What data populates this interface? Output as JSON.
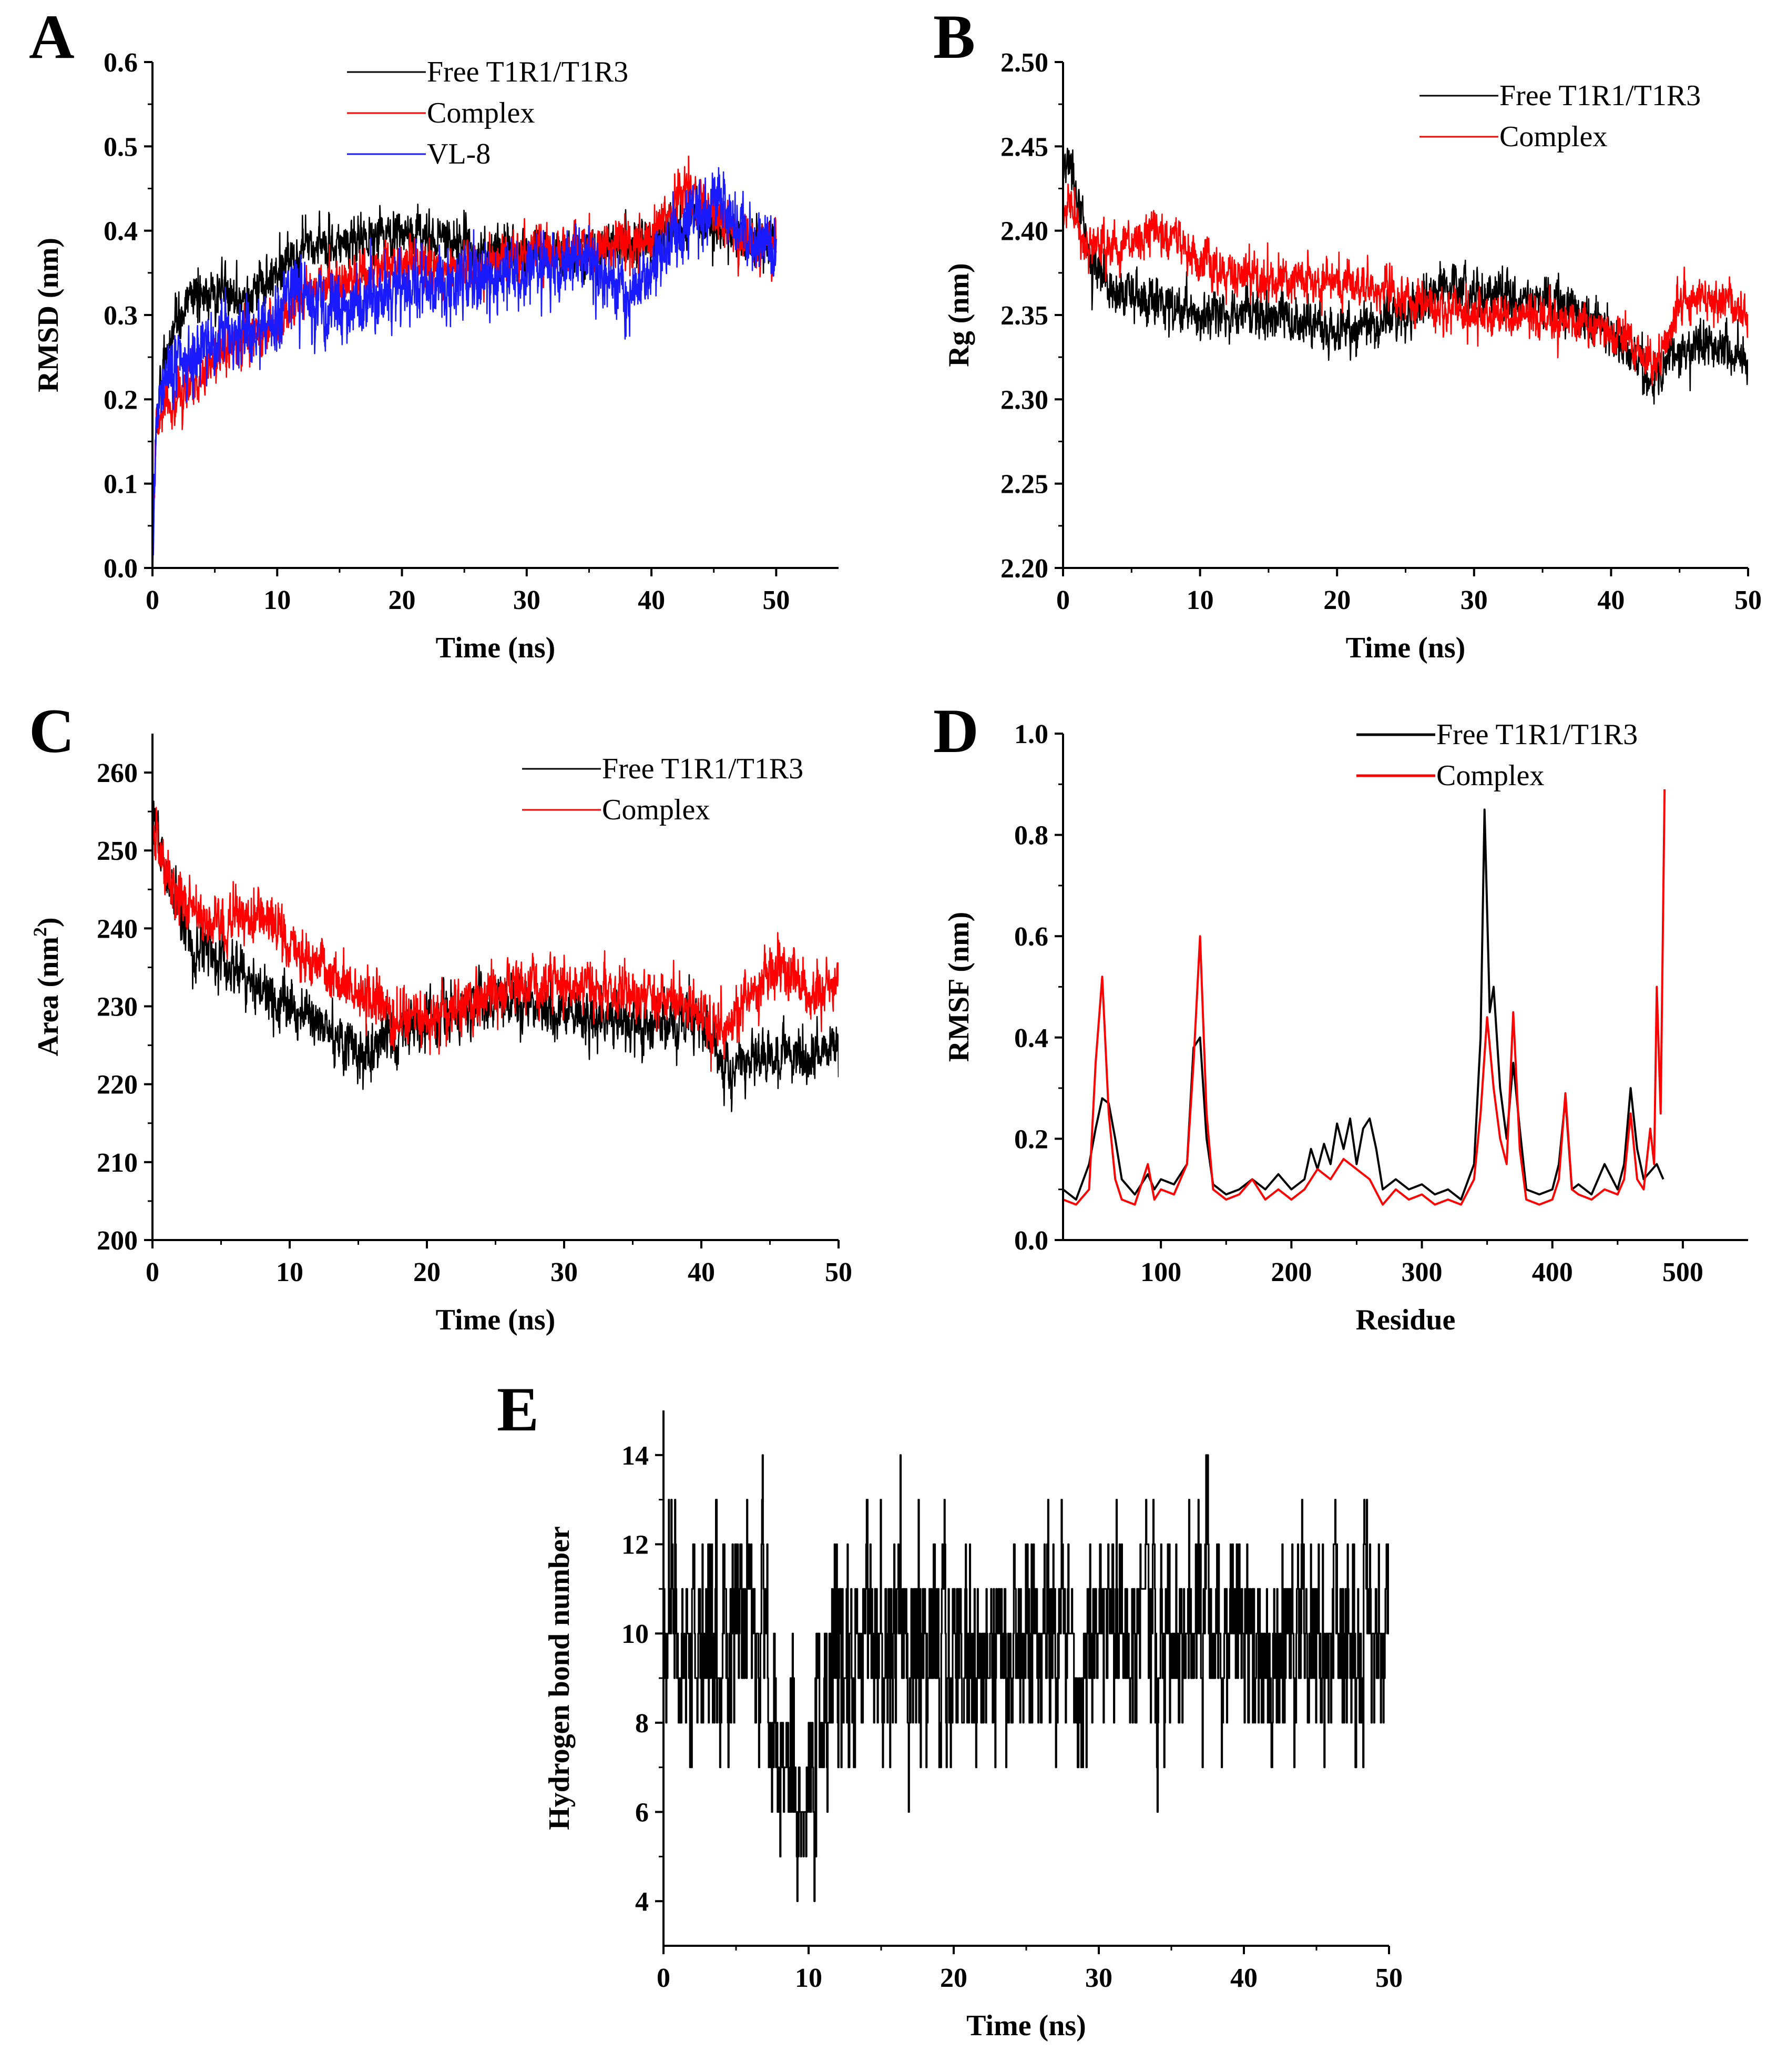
{
  "colors": {
    "black": "#000000",
    "red": "#ff0000",
    "blue": "#1a1aff"
  },
  "chart_data": [
    {
      "id": "A",
      "type": "line",
      "panel_label": "A",
      "xlabel": "Time (ns)",
      "ylabel": "RMSD (nm)",
      "xlim": [
        0,
        55
      ],
      "ylim": [
        0,
        0.6
      ],
      "xticks": [
        0,
        10,
        20,
        30,
        40,
        50
      ],
      "xtick_labels": [
        "0",
        "10",
        "20",
        "30",
        "40",
        "50"
      ],
      "yticks": [
        0,
        0.1,
        0.2,
        0.3,
        0.4,
        0.5,
        0.6
      ],
      "ytick_labels": [
        "0.0",
        "0.1",
        "0.2",
        "0.3",
        "0.4",
        "0.5",
        "0.6"
      ],
      "legend": "top-center",
      "series": [
        {
          "name": "Free T1R1/T1R3",
          "color": "#000000",
          "noise": 0.018,
          "x": [
            0,
            0.3,
            1,
            2,
            3,
            5,
            8,
            10,
            12,
            15,
            20,
            25,
            30,
            35,
            40,
            43,
            45,
            48,
            50
          ],
          "y": [
            0,
            0.18,
            0.25,
            0.28,
            0.32,
            0.33,
            0.32,
            0.35,
            0.38,
            0.38,
            0.4,
            0.38,
            0.37,
            0.37,
            0.39,
            0.41,
            0.4,
            0.39,
            0.38
          ]
        },
        {
          "name": "Complex",
          "color": "#ff0000",
          "noise": 0.018,
          "x": [
            0,
            0.3,
            1,
            3,
            5,
            8,
            10,
            12,
            15,
            20,
            25,
            30,
            33,
            36,
            40,
            42,
            43,
            45,
            48,
            50
          ],
          "y": [
            0,
            0.17,
            0.19,
            0.21,
            0.25,
            0.28,
            0.29,
            0.32,
            0.34,
            0.36,
            0.35,
            0.37,
            0.38,
            0.38,
            0.39,
            0.43,
            0.45,
            0.42,
            0.38,
            0.39
          ]
        },
        {
          "name": "VL-8",
          "color": "#1a1aff",
          "noise": 0.025,
          "x": [
            0,
            0.3,
            1,
            3,
            5,
            8,
            10,
            11.5,
            13,
            15,
            20,
            25,
            30,
            32,
            35,
            38,
            40,
            42,
            44,
            45.5,
            48,
            50
          ],
          "y": [
            0,
            0.19,
            0.22,
            0.25,
            0.27,
            0.28,
            0.29,
            0.34,
            0.3,
            0.31,
            0.33,
            0.34,
            0.35,
            0.36,
            0.37,
            0.32,
            0.35,
            0.4,
            0.42,
            0.44,
            0.38,
            0.38
          ]
        }
      ]
    },
    {
      "id": "B",
      "type": "line",
      "panel_label": "B",
      "xlabel": "Time (ns)",
      "ylabel": "Rg (nm)",
      "xlim": [
        0,
        50
      ],
      "ylim": [
        2.2,
        2.5
      ],
      "xticks": [
        0,
        10,
        20,
        30,
        40,
        50
      ],
      "xtick_labels": [
        "0",
        "10",
        "20",
        "30",
        "40",
        "50"
      ],
      "yticks": [
        2.2,
        2.25,
        2.3,
        2.35,
        2.4,
        2.45,
        2.5
      ],
      "ytick_labels": [
        "2.20",
        "2.25",
        "2.30",
        "2.35",
        "2.40",
        "2.45",
        "2.50"
      ],
      "legend": "top-right",
      "series": [
        {
          "name": "Free T1R1/T1R3",
          "color": "#000000",
          "noise": 0.009,
          "x": [
            0,
            0.5,
            1,
            2,
            4,
            6,
            10,
            15,
            20,
            25,
            28,
            30,
            35,
            38,
            40,
            42,
            43,
            45,
            48,
            50
          ],
          "y": [
            2.43,
            2.44,
            2.42,
            2.38,
            2.36,
            2.36,
            2.35,
            2.35,
            2.34,
            2.35,
            2.37,
            2.36,
            2.36,
            2.35,
            2.34,
            2.32,
            2.31,
            2.33,
            2.33,
            2.32
          ]
        },
        {
          "name": "Complex",
          "color": "#ff0000",
          "noise": 0.008,
          "x": [
            0,
            0.5,
            1,
            2,
            4,
            7,
            10,
            15,
            20,
            25,
            30,
            35,
            40,
            42,
            43,
            44,
            45,
            48,
            50
          ],
          "y": [
            2.41,
            2.42,
            2.4,
            2.39,
            2.39,
            2.4,
            2.38,
            2.37,
            2.37,
            2.36,
            2.35,
            2.35,
            2.34,
            2.33,
            2.32,
            2.33,
            2.36,
            2.36,
            2.35
          ]
        }
      ]
    },
    {
      "id": "C",
      "type": "line",
      "panel_label": "C",
      "xlabel": "Time (ns)",
      "ylabel": "Area (nm",
      "ylabel_sup": "2",
      "ylabel_end": ")",
      "xlim": [
        0,
        50
      ],
      "ylim": [
        200,
        265
      ],
      "xticks": [
        0,
        10,
        20,
        30,
        40,
        50
      ],
      "xtick_labels": [
        "0",
        "10",
        "20",
        "30",
        "40",
        "50"
      ],
      "yticks": [
        200,
        210,
        220,
        230,
        240,
        250,
        260
      ],
      "ytick_labels": [
        "200",
        "210",
        "220",
        "230",
        "240",
        "250",
        "260"
      ],
      "legend": "top-right",
      "series": [
        {
          "name": "Free T1R1/T1R3",
          "color": "#000000",
          "noise": 2.2,
          "x": [
            0,
            0.5,
            1,
            3,
            5,
            8,
            10,
            12,
            15,
            18,
            20,
            25,
            30,
            35,
            40,
            42,
            45,
            48,
            50
          ],
          "y": [
            257,
            252,
            246,
            238,
            236,
            232,
            230,
            228,
            224,
            227,
            228,
            231,
            229,
            228,
            228,
            222,
            224,
            223,
            225
          ]
        },
        {
          "name": "Complex",
          "color": "#ff0000",
          "noise": 2.2,
          "x": [
            0,
            0.5,
            1,
            3,
            5,
            8,
            10,
            12,
            15,
            18,
            20,
            25,
            30,
            35,
            40,
            42,
            44,
            46,
            48,
            50
          ],
          "y": [
            252,
            250,
            247,
            242,
            240,
            242,
            238,
            235,
            232,
            228,
            229,
            232,
            233,
            232,
            229,
            227,
            233,
            235,
            231,
            234
          ]
        }
      ]
    },
    {
      "id": "D",
      "type": "line",
      "panel_label": "D",
      "xlabel": "Residue",
      "ylabel": "RMSF (nm)",
      "xlim": [
        25,
        550
      ],
      "ylim": [
        0,
        1.0
      ],
      "xticks": [
        100,
        200,
        300,
        400,
        500
      ],
      "xtick_labels": [
        "100",
        "200",
        "300",
        "400",
        "500"
      ],
      "yticks": [
        0,
        0.2,
        0.4,
        0.6,
        0.8,
        1.0
      ],
      "ytick_labels": [
        "0.0",
        "0.2",
        "0.4",
        "0.6",
        "0.8",
        "1.0"
      ],
      "legend": "top-center",
      "series": [
        {
          "name": "Free T1R1/T1R3",
          "color": "#000000",
          "x": [
            25,
            35,
            45,
            50,
            55,
            60,
            65,
            70,
            80,
            90,
            95,
            100,
            110,
            120,
            125,
            130,
            135,
            140,
            150,
            160,
            170,
            180,
            190,
            200,
            210,
            215,
            220,
            225,
            230,
            235,
            240,
            245,
            250,
            255,
            260,
            265,
            270,
            280,
            290,
            300,
            310,
            320,
            330,
            340,
            345,
            348,
            352,
            355,
            360,
            365,
            370,
            375,
            380,
            390,
            400,
            405,
            410,
            415,
            420,
            430,
            440,
            450,
            455,
            460,
            465,
            470,
            480,
            485
          ],
          "y": [
            0.1,
            0.08,
            0.15,
            0.22,
            0.28,
            0.27,
            0.2,
            0.12,
            0.09,
            0.13,
            0.1,
            0.12,
            0.11,
            0.15,
            0.38,
            0.4,
            0.2,
            0.11,
            0.09,
            0.1,
            0.12,
            0.1,
            0.13,
            0.1,
            0.12,
            0.18,
            0.14,
            0.19,
            0.15,
            0.23,
            0.18,
            0.24,
            0.15,
            0.22,
            0.24,
            0.18,
            0.1,
            0.12,
            0.1,
            0.11,
            0.09,
            0.1,
            0.08,
            0.15,
            0.4,
            0.85,
            0.45,
            0.5,
            0.3,
            0.2,
            0.35,
            0.22,
            0.1,
            0.09,
            0.1,
            0.15,
            0.28,
            0.1,
            0.11,
            0.09,
            0.15,
            0.1,
            0.15,
            0.3,
            0.18,
            0.12,
            0.15,
            0.12
          ]
        },
        {
          "name": "Complex",
          "color": "#ff0000",
          "x": [
            25,
            35,
            45,
            50,
            55,
            60,
            65,
            70,
            80,
            90,
            95,
            100,
            110,
            120,
            125,
            130,
            135,
            140,
            150,
            160,
            170,
            180,
            190,
            200,
            210,
            220,
            230,
            240,
            250,
            260,
            270,
            280,
            290,
            300,
            310,
            320,
            330,
            340,
            345,
            350,
            355,
            360,
            365,
            370,
            375,
            380,
            390,
            400,
            405,
            410,
            415,
            420,
            430,
            440,
            450,
            455,
            460,
            465,
            470,
            475,
            478,
            480,
            483,
            486
          ],
          "y": [
            0.08,
            0.07,
            0.1,
            0.35,
            0.52,
            0.25,
            0.12,
            0.08,
            0.07,
            0.15,
            0.08,
            0.1,
            0.09,
            0.15,
            0.35,
            0.6,
            0.25,
            0.1,
            0.08,
            0.09,
            0.12,
            0.08,
            0.1,
            0.08,
            0.1,
            0.14,
            0.12,
            0.16,
            0.14,
            0.12,
            0.07,
            0.1,
            0.08,
            0.09,
            0.07,
            0.08,
            0.07,
            0.12,
            0.25,
            0.44,
            0.3,
            0.2,
            0.15,
            0.45,
            0.18,
            0.08,
            0.07,
            0.08,
            0.12,
            0.29,
            0.1,
            0.09,
            0.08,
            0.1,
            0.09,
            0.12,
            0.25,
            0.12,
            0.1,
            0.22,
            0.15,
            0.5,
            0.25,
            0.89
          ]
        }
      ]
    },
    {
      "id": "E",
      "type": "line",
      "panel_label": "E",
      "xlabel": "Time (ns)",
      "ylabel": "Hydrogen bond number",
      "xlim": [
        0,
        50
      ],
      "ylim": [
        3,
        15
      ],
      "xticks": [
        0,
        10,
        20,
        30,
        40,
        50
      ],
      "xtick_labels": [
        "0",
        "10",
        "20",
        "30",
        "40",
        "50"
      ],
      "yticks": [
        4,
        6,
        8,
        10,
        12,
        14
      ],
      "ytick_labels": [
        "4",
        "6",
        "8",
        "10",
        "12",
        "14"
      ],
      "series": [
        {
          "name": "Hydrogen bonds",
          "color": "#000000",
          "step": true,
          "noise": 1.6,
          "x": [
            0,
            2,
            4,
            5,
            6,
            7,
            8,
            9,
            10,
            11,
            12,
            15,
            18,
            20,
            22,
            25,
            28,
            30,
            35,
            38,
            40,
            42,
            45,
            48,
            50
          ],
          "y": [
            9.5,
            9.5,
            9.5,
            10,
            10.5,
            9,
            7.5,
            6.8,
            7.2,
            9,
            9.5,
            9.5,
            9.5,
            9.3,
            9.5,
            9.5,
            10,
            10,
            10,
            10,
            9.8,
            9.6,
            10,
            10,
            9.5
          ]
        }
      ]
    }
  ]
}
